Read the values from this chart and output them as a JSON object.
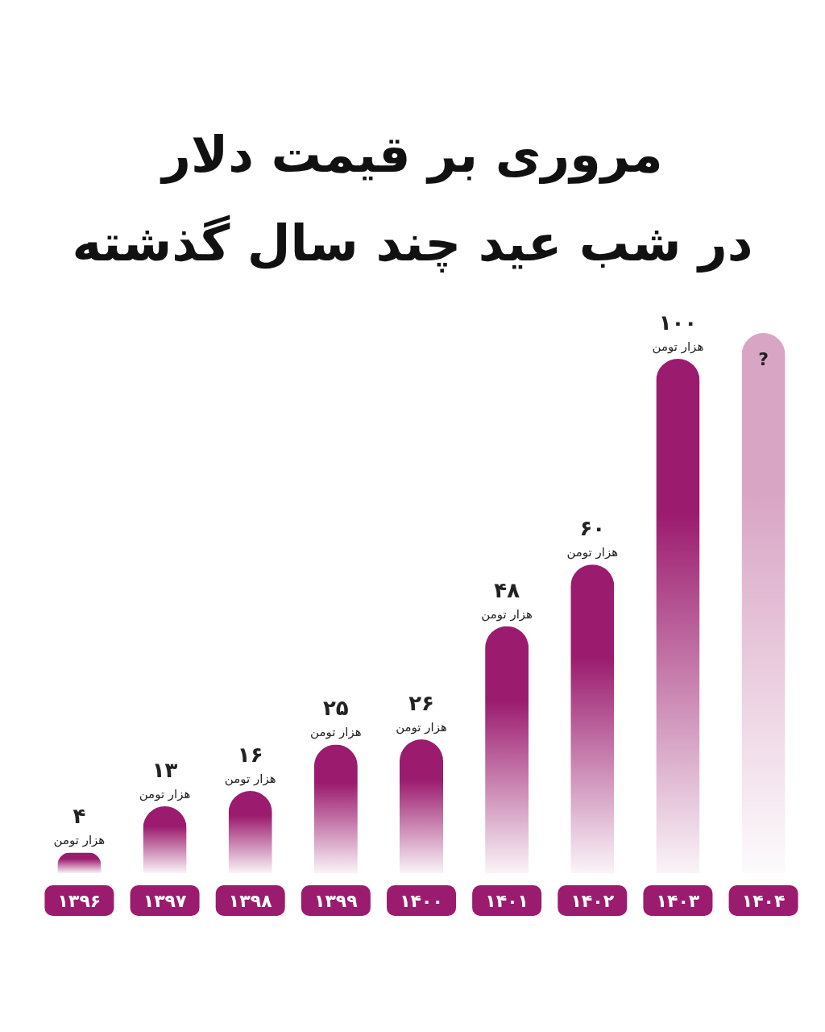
{
  "chart_data": {
    "type": "bar",
    "title": "مروری بر قیمت دلار",
    "subtitle": "در شب عید چند سال گذشته",
    "categories": [
      "۱۳۹۶",
      "۱۳۹۷",
      "۱۳۹۸",
      "۱۳۹۹",
      "۱۴۰۰",
      "۱۴۰۱",
      "۱۴۰۲",
      "۱۴۰۳",
      "۱۴۰۴"
    ],
    "values": [
      4,
      13,
      16,
      25,
      26,
      48,
      60,
      100,
      105
    ],
    "colors": [
      "#9b1b6e",
      "#9b1b6e",
      "#9b1b6e",
      "#9b1b6e",
      "#9b1b6e",
      "#9b1b6e",
      "#9b1b6e",
      "#9b1b6e",
      "#d9a5c5"
    ],
    "value_labels": [
      "۴ هزار تومن",
      "۱۳ هزار تومن",
      "۱۶ هزار تومن",
      "۲۵ هزار تومن",
      "۲۶ هزار تومن",
      "۴۸ هزار تومن",
      "۶۰ هزار تومن",
      "۱۰۰ هزار تومن",
      "?"
    ]
  }
}
